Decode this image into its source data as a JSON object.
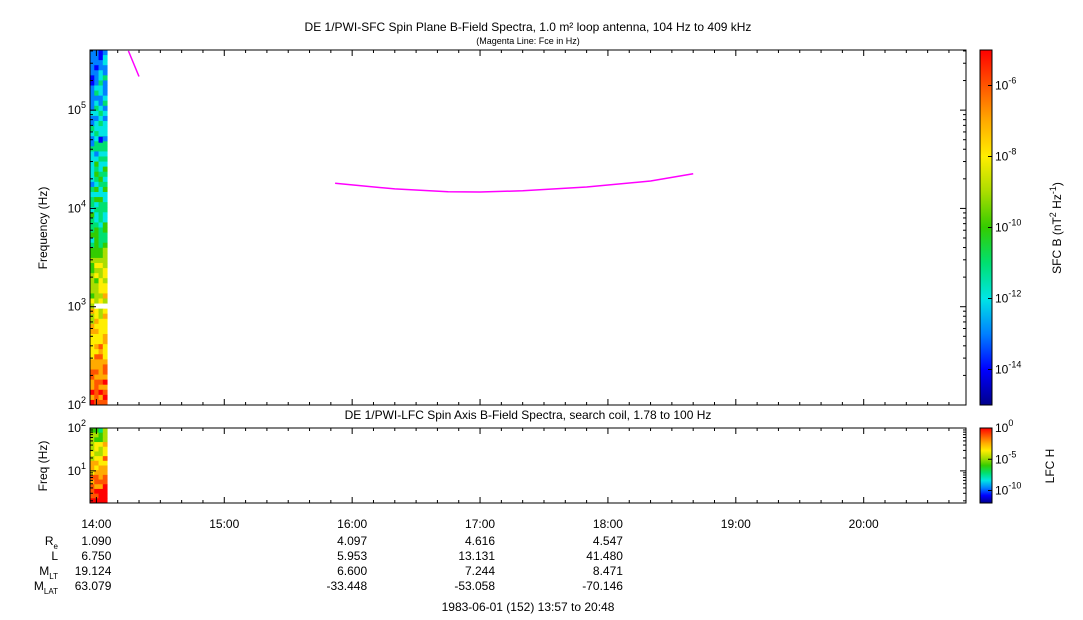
{
  "colors": {
    "fce_line": "#ff00ff",
    "colormap": [
      "#00008b",
      "#0000ff",
      "#0080ff",
      "#00e5e5",
      "#00e070",
      "#33cc00",
      "#aadd00",
      "#ffee00",
      "#ffaa00",
      "#ff5500",
      "#ff0000"
    ]
  },
  "chart_data": [
    {
      "type": "heatmap",
      "title": "DE 1/PWI-SFC  Spin Plane B-Field Spectra, 1.0 m² loop antenna, 104 Hz to 409 kHz",
      "subtitle": "(Magenta Line: Fce in Hz)",
      "ylabel": "Frequency (Hz)",
      "yscale": "log",
      "ylim": [
        100,
        409000
      ],
      "yticks": [
        100,
        1000,
        10000,
        100000
      ],
      "ytick_labels": [
        {
          "base": "10",
          "exp": "2"
        },
        {
          "base": "10",
          "exp": "3"
        },
        {
          "base": "10",
          "exp": "4"
        },
        {
          "base": "10",
          "exp": "5"
        }
      ],
      "x_time_range": [
        "13:57",
        "20:48"
      ],
      "data_time_range": [
        "13:57",
        "14:05"
      ],
      "colorbar": {
        "label": {
          "pre": "SFC B (nT",
          "sup1": "2",
          "mid": " Hz",
          "sup2": "-1",
          "post": ")"
        },
        "scale": "log",
        "range": [
          1e-15,
          1e-05
        ],
        "ticks": [
          1e-14,
          1e-12,
          1e-10,
          1e-08,
          1e-06
        ],
        "tick_labels": [
          {
            "base": "10",
            "exp": "-14"
          },
          {
            "base": "10",
            "exp": "-12"
          },
          {
            "base": "10",
            "exp": "-10"
          },
          {
            "base": "10",
            "exp": "-8"
          },
          {
            "base": "10",
            "exp": "-6"
          }
        ]
      },
      "fce_series": [
        {
          "time": "14:15",
          "freq": 400000
        },
        {
          "time": "14:20",
          "freq": 220000
        }
      ],
      "fce_series2": [
        {
          "time": "15:52",
          "freq": 18000
        },
        {
          "time": "16:20",
          "freq": 15800
        },
        {
          "time": "16:45",
          "freq": 14800
        },
        {
          "time": "17:00",
          "freq": 14700
        },
        {
          "time": "17:20",
          "freq": 15100
        },
        {
          "time": "17:50",
          "freq": 16500
        },
        {
          "time": "18:20",
          "freq": 19000
        },
        {
          "time": "18:40",
          "freq": 22500
        }
      ]
    },
    {
      "type": "heatmap",
      "title": "DE 1/PWI-LFC  Spin Axis B-Field Spectra, search coil, 1.78 to 100 Hz",
      "ylabel": "Freq (Hz)",
      "yscale": "log",
      "ylim": [
        1.78,
        100
      ],
      "yticks": [
        10,
        100
      ],
      "ytick_labels": [
        {
          "base": "10",
          "exp": "1"
        },
        {
          "base": "10",
          "exp": "2"
        }
      ],
      "colorbar": {
        "label": "LFC H",
        "scale": "log",
        "range": [
          1e-12,
          1
        ],
        "ticks": [
          1e-10,
          1e-05,
          1
        ],
        "tick_labels": [
          {
            "base": "10",
            "exp": "-10"
          },
          {
            "base": "10",
            "exp": "-5"
          },
          {
            "base": "10",
            "exp": "0"
          }
        ]
      }
    }
  ],
  "x_axis": {
    "start": "13:57",
    "end": "20:48",
    "tick_labels": [
      "14:00",
      "15:00",
      "16:00",
      "17:00",
      "18:00",
      "19:00",
      "20:00"
    ],
    "footer": "1983-06-01 (152) 13:57 to 20:48"
  },
  "ephemeris": {
    "rows": [
      {
        "label": "R",
        "sub": "e",
        "values": [
          "1.090",
          "",
          "4.097",
          "4.616",
          "4.547"
        ]
      },
      {
        "label": "L",
        "sub": "",
        "values": [
          "6.750",
          "",
          "5.953",
          "13.131",
          "41.480"
        ]
      },
      {
        "label": "M",
        "sub": "LT",
        "values": [
          "19.124",
          "",
          "6.600",
          "7.244",
          "8.471"
        ]
      },
      {
        "label": "M",
        "sub": "LAT",
        "values": [
          "63.079",
          "",
          "-33.448",
          "-53.058",
          "-70.146"
        ]
      }
    ]
  }
}
